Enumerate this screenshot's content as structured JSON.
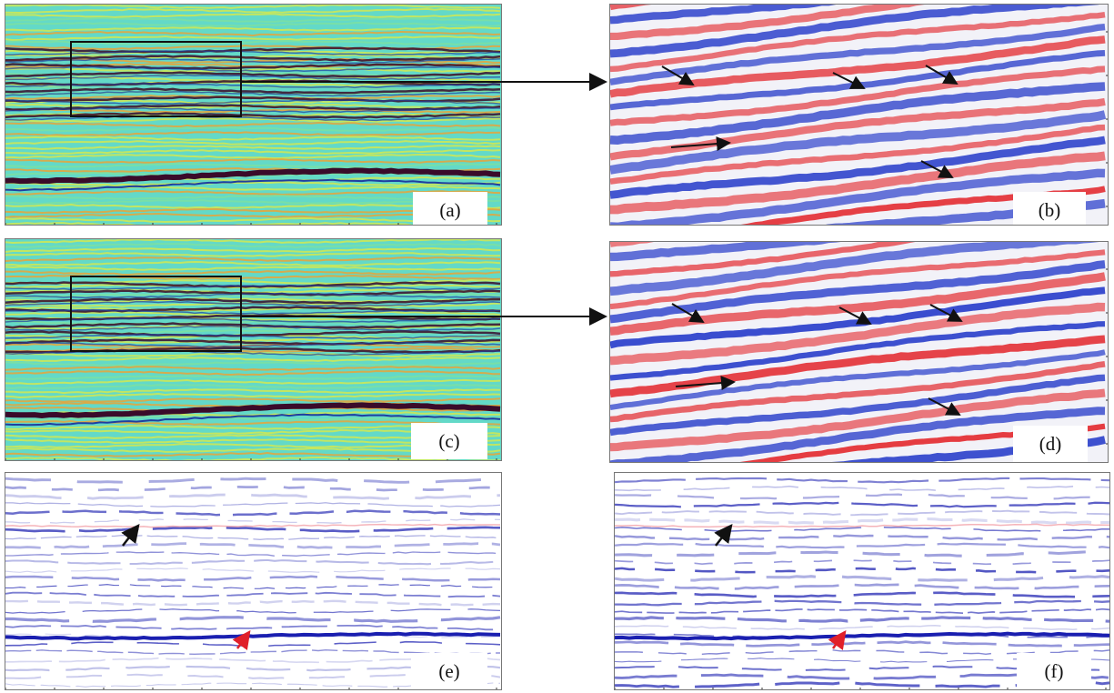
{
  "panels": {
    "a": {
      "label": "(a)",
      "colormap": "jet"
    },
    "b": {
      "label": "(b)",
      "colormap": "red-blue"
    },
    "c": {
      "label": "(c)",
      "colormap": "jet"
    },
    "d": {
      "label": "(d)",
      "colormap": "red-blue"
    },
    "e": {
      "label": "(e)",
      "colormap": "white-blue"
    },
    "f": {
      "label": "(f)",
      "colormap": "white-blue"
    }
  },
  "colors": {
    "jet_bg": "#63d9c8",
    "jet_yellow": "#d8e84a",
    "jet_dark": "#3a0b2a",
    "jet_blue": "#1f3ea0",
    "rb_red": "#e3262b",
    "rb_blue": "#2036c8",
    "wb_blue": "#1a1fb0",
    "arrow_black": "#111111",
    "arrow_red": "#e0202a"
  },
  "annotation_arrows": {
    "b": 5,
    "d": 5,
    "e": {
      "black": 1,
      "red": 1
    },
    "f": {
      "black": 1,
      "red": 1
    }
  }
}
